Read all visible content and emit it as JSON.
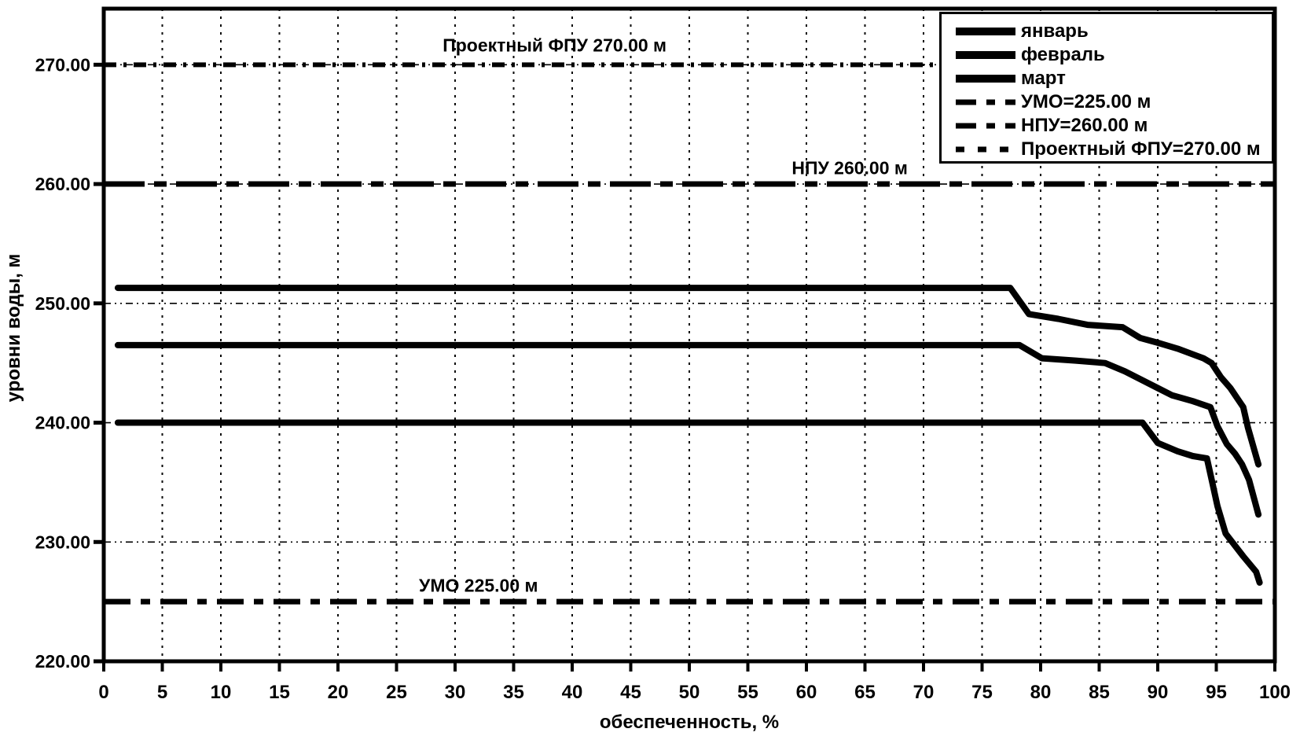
{
  "chart_data": {
    "type": "line",
    "title": "",
    "xlabel": "обеспеченность, %",
    "ylabel": "уровни воды, м",
    "xlim": [
      0,
      100
    ],
    "ylim": [
      220,
      274.7
    ],
    "x_ticks": [
      0,
      5,
      10,
      15,
      20,
      25,
      30,
      35,
      40,
      45,
      50,
      55,
      60,
      65,
      70,
      75,
      80,
      85,
      90,
      95,
      100
    ],
    "y_ticks": [
      220,
      230,
      240,
      250,
      260,
      270
    ],
    "grid": true,
    "colors": {
      "line": "#000000",
      "background": "#ffffff"
    },
    "series": [
      {
        "id": "january",
        "name": "январь",
        "points": [
          [
            1.2,
            251.3
          ],
          [
            77.4,
            251.3
          ],
          [
            79.0,
            249.1
          ],
          [
            81.5,
            248.7
          ],
          [
            84.0,
            248.2
          ],
          [
            87.0,
            248.0
          ],
          [
            88.5,
            247.1
          ],
          [
            90.0,
            246.7
          ],
          [
            91.7,
            246.2
          ],
          [
            93.9,
            245.4
          ],
          [
            94.6,
            245.0
          ],
          [
            95.4,
            243.8
          ],
          [
            96.2,
            242.9
          ],
          [
            97.3,
            241.3
          ],
          [
            97.7,
            239.6
          ],
          [
            98.6,
            236.5
          ]
        ]
      },
      {
        "id": "february",
        "name": "февраль",
        "points": [
          [
            1.2,
            246.5
          ],
          [
            78.2,
            246.5
          ],
          [
            80.1,
            245.4
          ],
          [
            83.0,
            245.2
          ],
          [
            85.5,
            245.0
          ],
          [
            87.2,
            244.3
          ],
          [
            90.0,
            242.9
          ],
          [
            91.2,
            242.3
          ],
          [
            93.0,
            241.8
          ],
          [
            94.5,
            241.3
          ],
          [
            95.1,
            239.7
          ],
          [
            95.9,
            238.2
          ],
          [
            96.6,
            237.4
          ],
          [
            97.2,
            236.5
          ],
          [
            97.8,
            235.2
          ],
          [
            98.6,
            232.3
          ]
        ]
      },
      {
        "id": "march",
        "name": "март",
        "points": [
          [
            1.2,
            240.0
          ],
          [
            88.7,
            240.0
          ],
          [
            90.0,
            238.3
          ],
          [
            91.7,
            237.6
          ],
          [
            93.0,
            237.2
          ],
          [
            94.2,
            237.0
          ],
          [
            94.7,
            234.8
          ],
          [
            95.1,
            233.0
          ],
          [
            95.8,
            230.7
          ],
          [
            97.3,
            228.8
          ],
          [
            98.4,
            227.5
          ],
          [
            98.7,
            226.6
          ]
        ]
      }
    ],
    "reference_lines": [
      {
        "id": "umo",
        "label": "УМО 225.00 м",
        "value": 225.0,
        "style": "long-dash-dot"
      },
      {
        "id": "npu",
        "label": "НПУ 260.00 м",
        "value": 260.0,
        "style": "long-dash-dot"
      },
      {
        "id": "fpu",
        "label": "Проектный ФПУ 270.00 м",
        "value": 270.0,
        "style": "short-dash"
      }
    ],
    "annotations": [
      {
        "text": "Проектный ФПУ 270.00 м",
        "x": 38.5,
        "y": 271.6
      },
      {
        "text": "НПУ 260.00 м",
        "x": 63.7,
        "y": 261.3
      },
      {
        "text": "УМО 225.00 м",
        "x": 32.0,
        "y": 226.3
      }
    ],
    "legend": {
      "position": "top-right",
      "entries": [
        {
          "label": "январь",
          "swatch": "solid"
        },
        {
          "label": "февраль",
          "swatch": "solid"
        },
        {
          "label": "март",
          "swatch": "solid"
        },
        {
          "label": "УМО=225.00 м",
          "swatch": "dash-dot"
        },
        {
          "label": "НПУ=260.00 м",
          "swatch": "dash-dot"
        },
        {
          "label": "Проектный ФПУ=270.00 м",
          "swatch": "short-dash"
        }
      ]
    }
  }
}
